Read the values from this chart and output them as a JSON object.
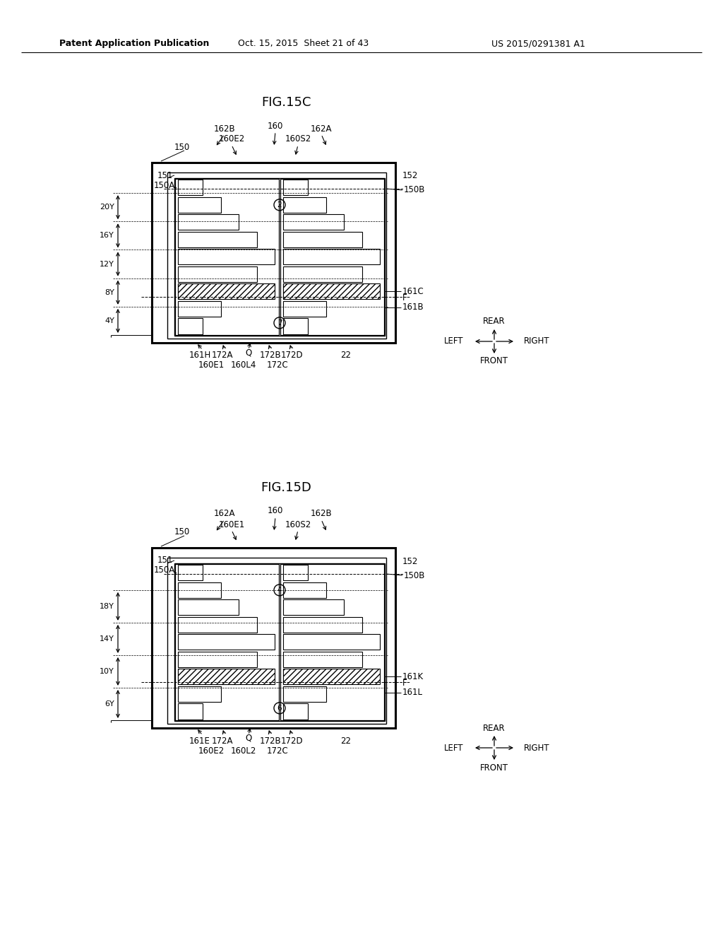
{
  "bg_color": "#ffffff",
  "header_left": "Patent Application Publication",
  "header_mid": "Oct. 15, 2015  Sheet 21 of 43",
  "header_right": "US 2015/0291381 A1",
  "fig1_title": "FIG.15C",
  "fig2_title": "FIG.15D"
}
